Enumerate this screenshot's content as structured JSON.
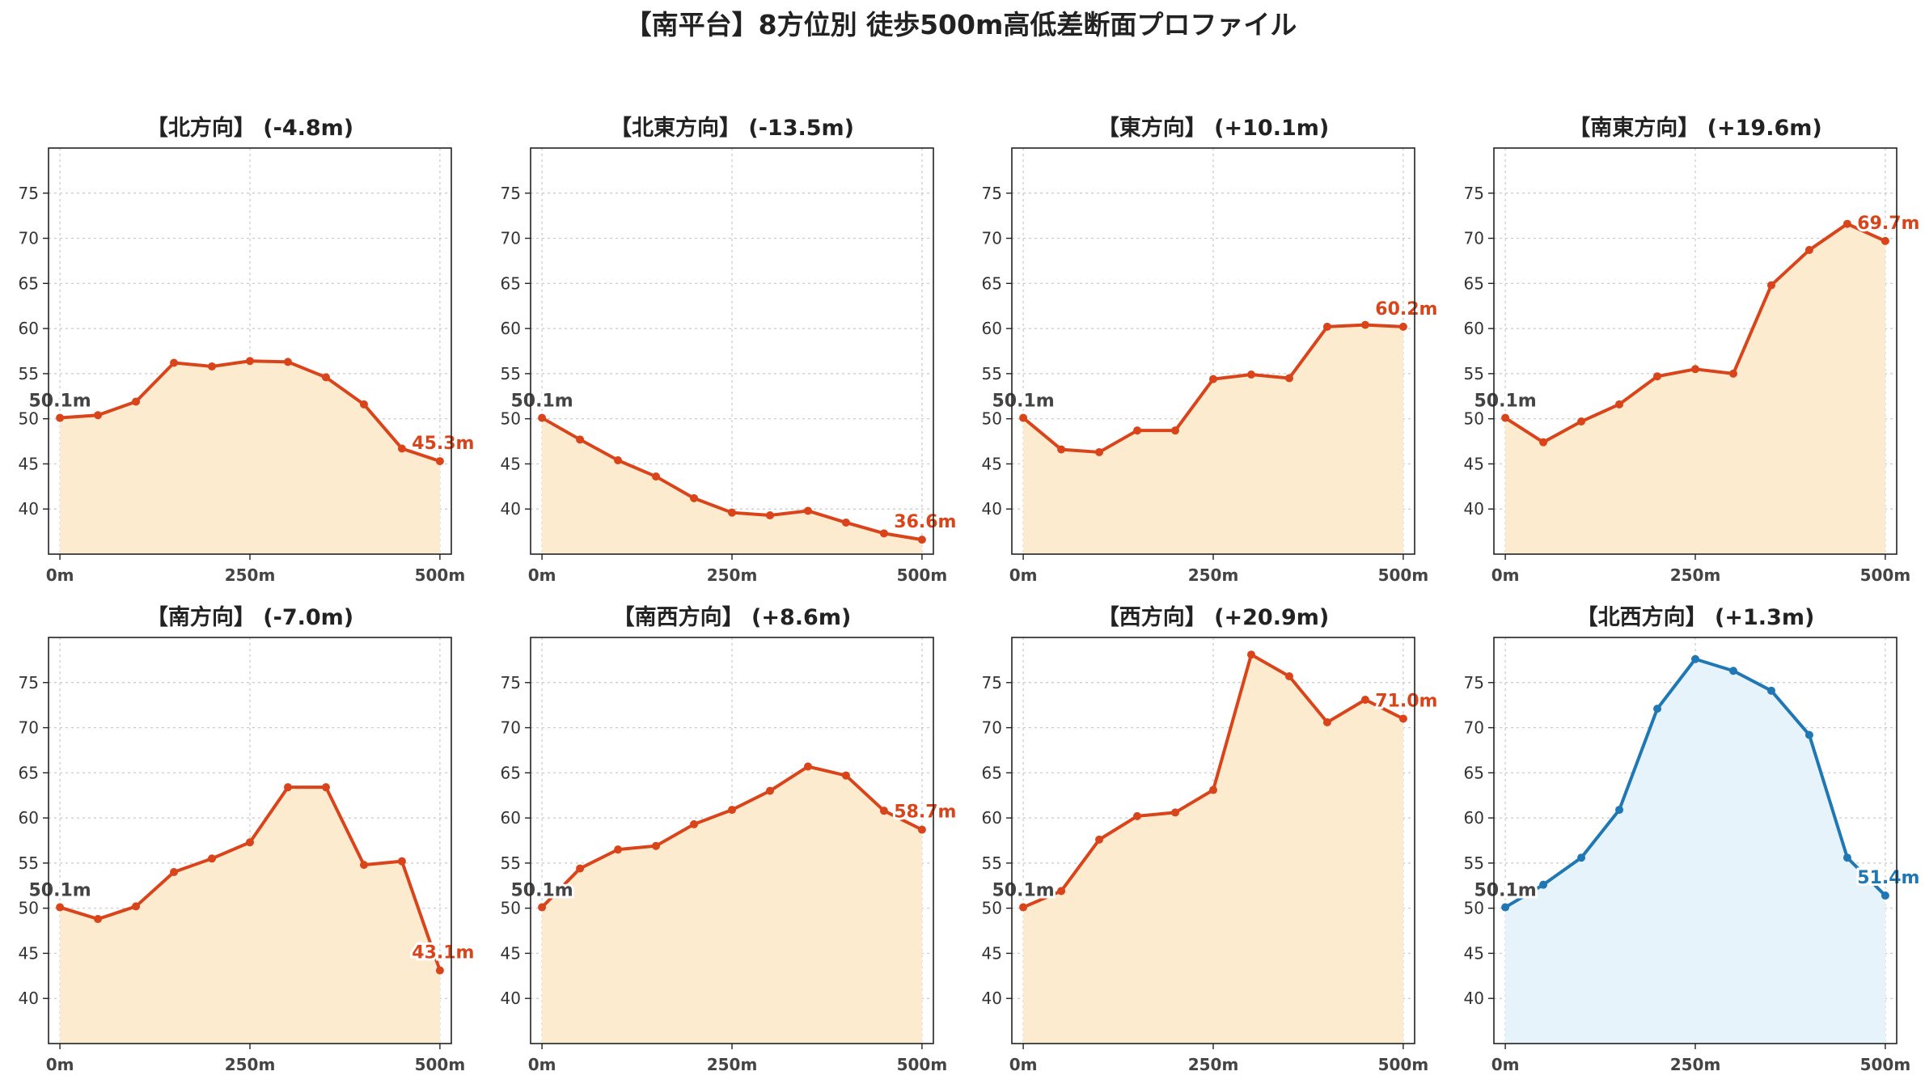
{
  "title": "【南平台】8方位別 徒歩500m高低差断面プロファイル",
  "colors": {
    "line_default": "#d9441a",
    "fill_default": "#fdebd0",
    "line_highlight": "#1f77b4",
    "fill_highlight": "#e6f3fb"
  },
  "axes": {
    "x_ticks": [
      0,
      250,
      500
    ],
    "x_tick_labels": [
      "0m",
      "250m",
      "500m"
    ],
    "y_ticks": [
      40,
      45,
      50,
      55,
      60,
      65,
      70,
      75
    ],
    "y_tick_labels": [
      "40",
      "45",
      "50",
      "55",
      "60",
      "65",
      "70",
      "75"
    ],
    "xlim": [
      -15,
      515
    ],
    "ylim": [
      35,
      80
    ],
    "grid": true
  },
  "chart_data": [
    {
      "type": "area",
      "title": "【北方向】 (-4.8m)",
      "highlight": false,
      "x": [
        0,
        50,
        100,
        150,
        200,
        250,
        300,
        350,
        400,
        450,
        500
      ],
      "y": [
        50.1,
        50.4,
        51.9,
        56.2,
        55.8,
        56.4,
        56.3,
        54.6,
        51.6,
        46.7,
        45.3
      ],
      "start_label": "50.1m",
      "end_label": "45.3m"
    },
    {
      "type": "area",
      "title": "【北東方向】 (-13.5m)",
      "highlight": false,
      "x": [
        0,
        50,
        100,
        150,
        200,
        250,
        300,
        350,
        400,
        450,
        500
      ],
      "y": [
        50.1,
        47.7,
        45.4,
        43.6,
        41.2,
        39.6,
        39.3,
        39.8,
        38.5,
        37.3,
        36.6
      ],
      "start_label": "50.1m",
      "end_label": "36.6m"
    },
    {
      "type": "area",
      "title": "【東方向】 (+10.1m)",
      "highlight": false,
      "x": [
        0,
        50,
        100,
        150,
        200,
        250,
        300,
        350,
        400,
        450,
        500
      ],
      "y": [
        50.1,
        46.6,
        46.3,
        48.7,
        48.7,
        54.4,
        54.9,
        54.5,
        60.2,
        60.4,
        60.2
      ],
      "start_label": "50.1m",
      "end_label": "60.2m"
    },
    {
      "type": "area",
      "title": "【南東方向】 (+19.6m)",
      "highlight": false,
      "x": [
        0,
        50,
        100,
        150,
        200,
        250,
        300,
        350,
        400,
        450,
        500
      ],
      "y": [
        50.1,
        47.4,
        49.7,
        51.6,
        54.7,
        55.5,
        55.0,
        64.8,
        68.7,
        71.6,
        69.7
      ],
      "start_label": "50.1m",
      "end_label": "69.7m"
    },
    {
      "type": "area",
      "title": "【南方向】 (-7.0m)",
      "highlight": false,
      "x": [
        0,
        50,
        100,
        150,
        200,
        250,
        300,
        350,
        400,
        450,
        500
      ],
      "y": [
        50.1,
        48.8,
        50.2,
        54.0,
        55.5,
        57.3,
        63.4,
        63.4,
        54.8,
        55.2,
        43.1
      ],
      "start_label": "50.1m",
      "end_label": "43.1m"
    },
    {
      "type": "area",
      "title": "【南西方向】 (+8.6m)",
      "highlight": false,
      "x": [
        0,
        50,
        100,
        150,
        200,
        250,
        300,
        350,
        400,
        450,
        500
      ],
      "y": [
        50.1,
        54.4,
        56.5,
        56.9,
        59.3,
        60.9,
        63.0,
        65.7,
        64.7,
        60.8,
        58.7
      ],
      "start_label": "50.1m",
      "end_label": "58.7m"
    },
    {
      "type": "area",
      "title": "【西方向】 (+20.9m)",
      "highlight": false,
      "x": [
        0,
        50,
        100,
        150,
        200,
        250,
        300,
        350,
        400,
        450,
        500
      ],
      "y": [
        50.1,
        51.9,
        57.6,
        60.2,
        60.6,
        63.1,
        78.1,
        75.7,
        70.6,
        73.1,
        71.0
      ],
      "start_label": "50.1m",
      "end_label": "71.0m"
    },
    {
      "type": "area",
      "title": "【北西方向】 (+1.3m)",
      "highlight": true,
      "x": [
        0,
        50,
        100,
        150,
        200,
        250,
        300,
        350,
        400,
        450,
        500
      ],
      "y": [
        50.1,
        52.6,
        55.6,
        60.9,
        72.1,
        77.6,
        76.3,
        74.1,
        69.2,
        55.6,
        51.4
      ],
      "start_label": "50.1m",
      "end_label": "51.4m"
    }
  ]
}
